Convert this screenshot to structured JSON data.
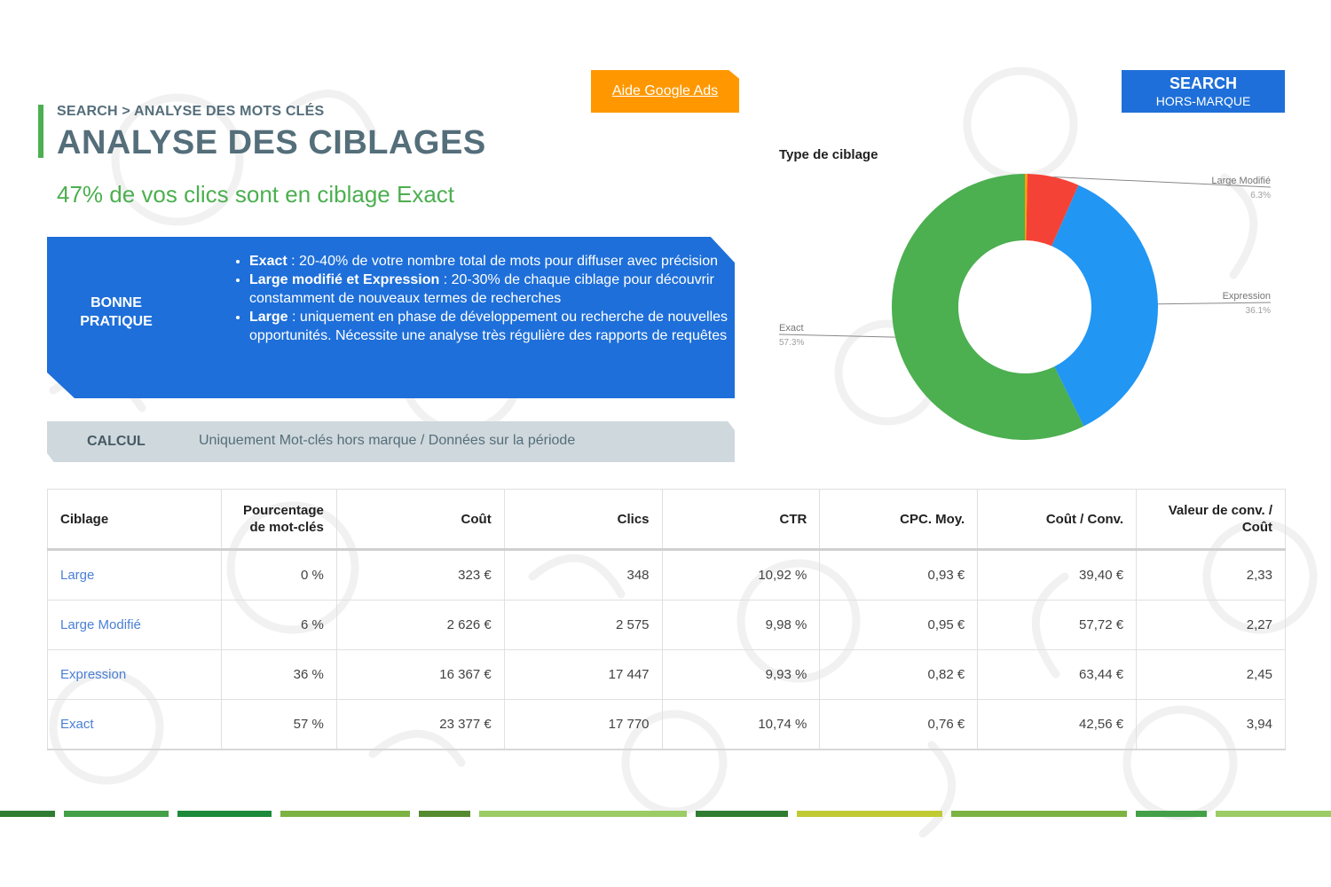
{
  "header": {
    "breadcrumb": "SEARCH > ANALYSE DES MOTS CLÉS",
    "title": "ANALYSE DES CIBLAGES",
    "subtitle": "47% de vos clics sont en ciblage Exact",
    "help_link": "Aide Google Ads",
    "badge_line1": "SEARCH",
    "badge_line2": "HORS-MARQUE"
  },
  "best_practice": {
    "label_line1": "BONNE",
    "label_line2": "PRATIQUE",
    "items": [
      {
        "bold": "Exact",
        "text": " : 20-40% de votre nombre total de mots pour diffuser avec précision"
      },
      {
        "bold": "Large modifié et Expression",
        "text": " : 20-30% de chaque ciblage pour découvrir constamment de nouveaux termes de recherches"
      },
      {
        "bold": "Large",
        "text": " : uniquement en phase de développement ou recherche de nouvelles opportunités. Nécessite une analyse très régulière des rapports de requêtes"
      }
    ]
  },
  "calc": {
    "label": "CALCUL",
    "text": "Uniquement Mot-clés hors marque / Données sur la période"
  },
  "chart_data": {
    "type": "pie",
    "title": "Type de ciblage",
    "slices": [
      {
        "name": "Large",
        "value": 0.3,
        "color": "#ffa000"
      },
      {
        "name": "Large Modifié",
        "value": 6.3,
        "label": "6.3%",
        "color": "#f44336"
      },
      {
        "name": "Expression",
        "value": 36.1,
        "label": "36.1%",
        "color": "#2196f3"
      },
      {
        "name": "Exact",
        "value": 57.3,
        "label": "57.3%",
        "color": "#4caf50"
      }
    ],
    "hole": 0.5
  },
  "table": {
    "headers": [
      "Ciblage",
      "Pourcentage de mot-clés",
      "Coût",
      "Clics",
      "CTR",
      "CPC. Moy.",
      "Coût / Conv.",
      "Valeur de conv. / Coût"
    ],
    "header_lines": [
      [
        "Ciblage"
      ],
      [
        "Pourcentage",
        "de mot-clés"
      ],
      [
        "Coût"
      ],
      [
        "Clics"
      ],
      [
        "CTR"
      ],
      [
        "CPC. Moy."
      ],
      [
        "Coût / Conv."
      ],
      [
        "Valeur de conv. /",
        "Coût"
      ]
    ],
    "rows": [
      [
        "Large",
        "0 %",
        "323 €",
        "348",
        "10,92 %",
        "0,93 €",
        "39,40 €",
        "2,33"
      ],
      [
        "Large Modifié",
        "6 %",
        "2 626 €",
        "2 575",
        "9,98 %",
        "0,95 €",
        "57,72 €",
        "2,27"
      ],
      [
        "Expression",
        "36 %",
        "16 367 €",
        "17 447",
        "9,93 %",
        "0,82 €",
        "63,44 €",
        "2,45"
      ],
      [
        "Exact",
        "57 %",
        "23 377 €",
        "17 770",
        "10,74 %",
        "0,76 €",
        "42,56 €",
        "3,94"
      ]
    ]
  },
  "colors": {
    "primary_blue": "#1e6fd9",
    "green": "#4caf50",
    "orange": "#ff9800",
    "slate": "#546e7a"
  }
}
